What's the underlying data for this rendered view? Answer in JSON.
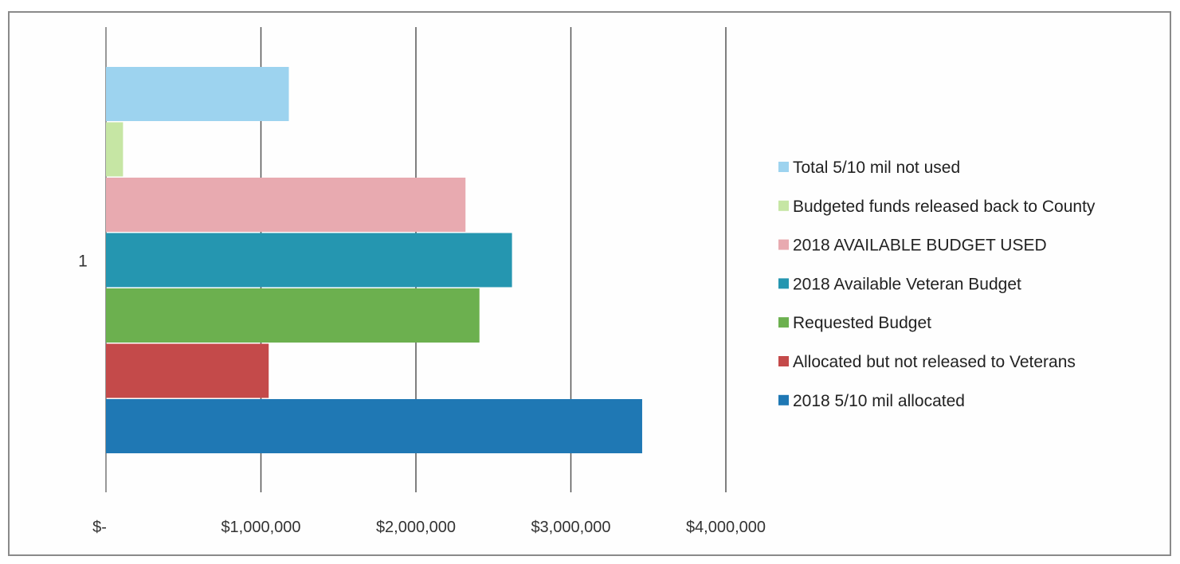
{
  "chart_data": {
    "type": "bar",
    "orientation": "horizontal",
    "categories": [
      "1"
    ],
    "xlim": [
      0,
      4000000
    ],
    "x_ticks": [
      0,
      1000000,
      2000000,
      3000000,
      4000000
    ],
    "x_tick_labels": [
      "$-",
      "$1,000,000",
      "$2,000,000",
      "$3,000,000",
      "$4,000,000"
    ],
    "grid": true,
    "legend_position": "right",
    "title": "",
    "xlabel": "",
    "ylabel": "",
    "series": [
      {
        "name": "Total 5/10 mil not used",
        "values": [
          1180000
        ],
        "color": "#9dd3ef"
      },
      {
        "name": "Budgeted funds released back to County",
        "values": [
          110000
        ],
        "color": "#c6e6a4"
      },
      {
        "name": "2018 AVAILABLE BUDGET USED",
        "values": [
          2320000
        ],
        "color": "#e8aab0"
      },
      {
        "name": "2018 Available Veteran Budget",
        "values": [
          2620000
        ],
        "color": "#2596b0"
      },
      {
        "name": "Requested Budget",
        "values": [
          2410000
        ],
        "color": "#6cb04f"
      },
      {
        "name": "Allocated but not released to Veterans",
        "values": [
          1050000
        ],
        "color": "#c44a4a"
      },
      {
        "name": "2018 5/10 mil allocated",
        "values": [
          3460000
        ],
        "color": "#1f78b4"
      }
    ]
  }
}
